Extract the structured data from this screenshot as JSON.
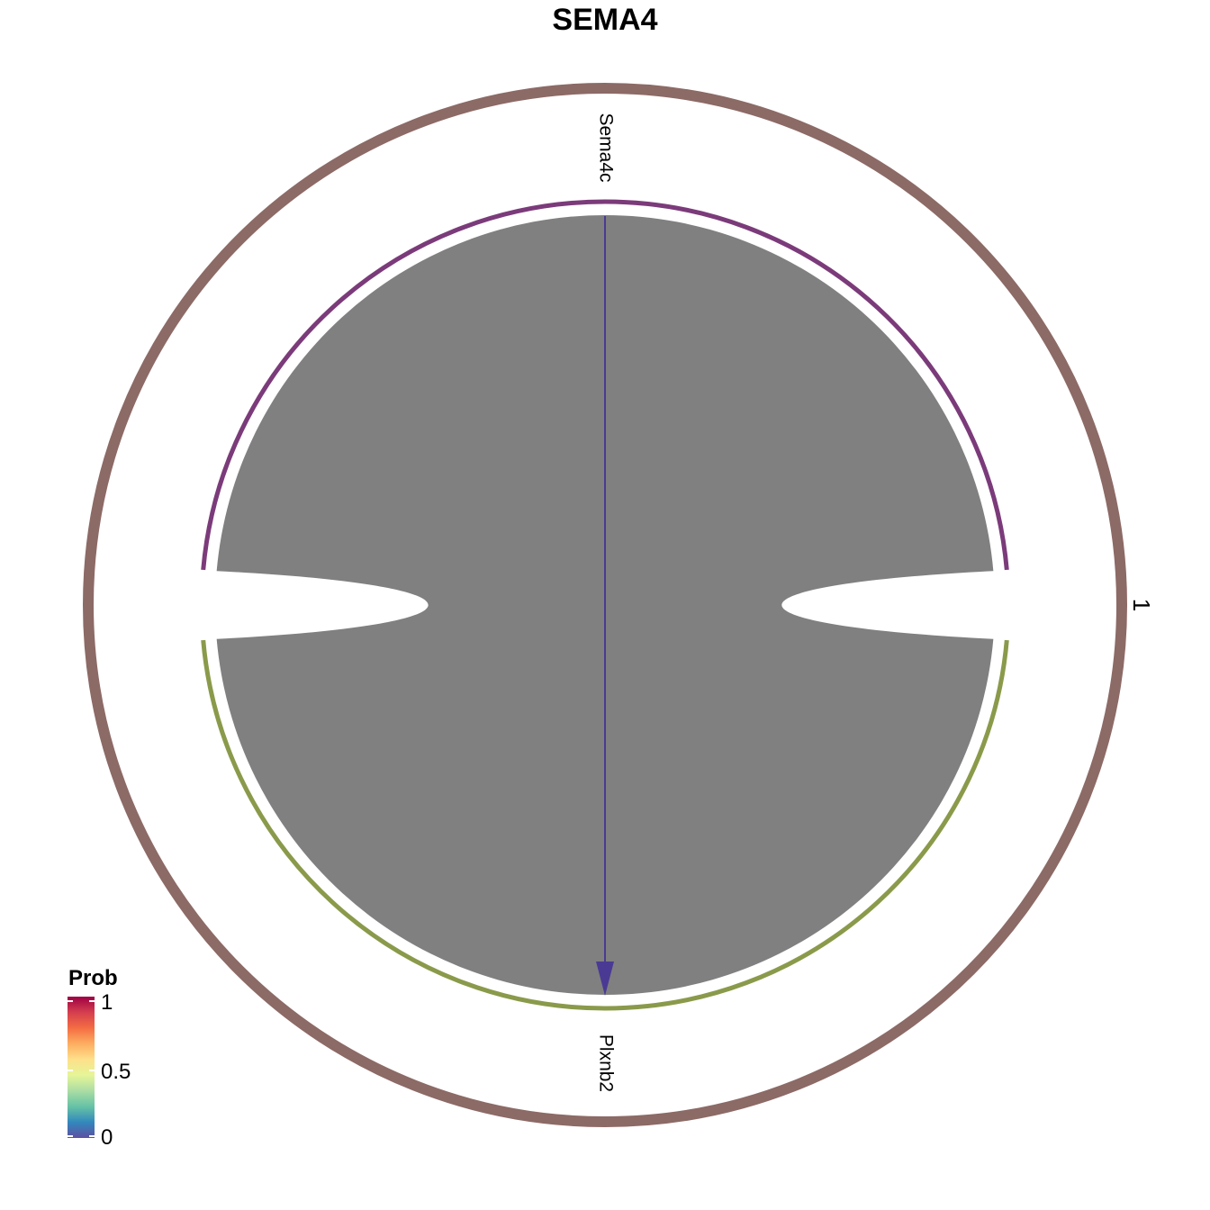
{
  "title": "SEMA4",
  "sectors": [
    {
      "name": "Sema4c",
      "color": "#7B3B7A"
    },
    {
      "name": "Plxnb2",
      "color": "#8A9A4B"
    }
  ],
  "group": {
    "label": "1",
    "color": "#8C6A66"
  },
  "chord": {
    "from": "Sema4c",
    "to": "Plxnb2",
    "fill": "#808080",
    "arrow_color": "#4A3A94"
  },
  "legend": {
    "title": "Prob",
    "ticks": [
      "1",
      "0.5",
      "0"
    ],
    "colors": [
      "#9E0142",
      "#D53E4F",
      "#F46D43",
      "#FDAE61",
      "#FEE08B",
      "#E6F598",
      "#ABDDA4",
      "#66C2A5",
      "#3288BD",
      "#5E4FA2"
    ]
  }
}
